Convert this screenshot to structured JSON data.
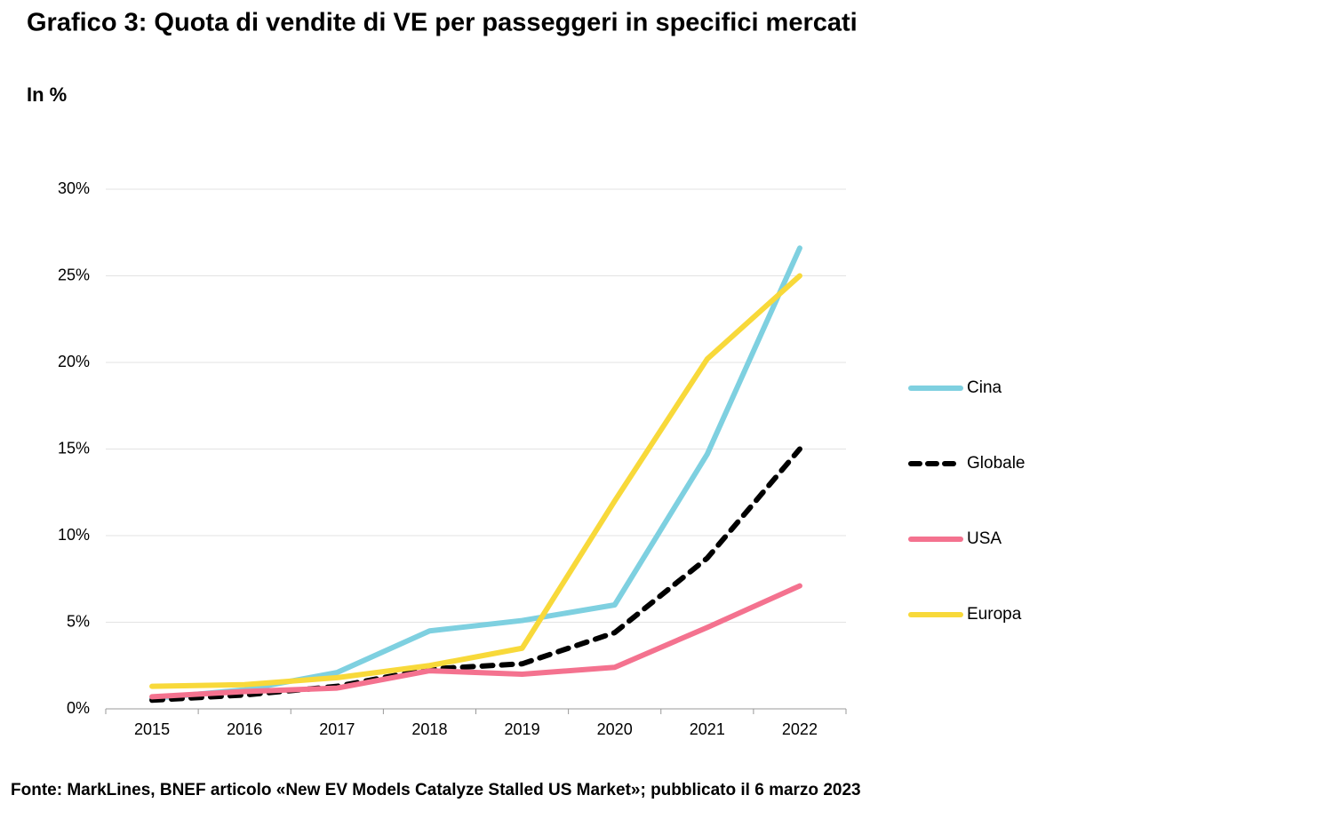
{
  "chart_data": {
    "type": "line",
    "title": "Grafico 3: Quota di vendite di VE per passeggeri in specifici mercati",
    "subtitle": "In %",
    "source": "Fonte: MarkLines, BNEF articolo «New EV Models Catalyze Stalled US Market»; pubblicato il 6 marzo 2023",
    "categories": [
      "2015",
      "2016",
      "2017",
      "2018",
      "2019",
      "2020",
      "2021",
      "2022"
    ],
    "ylim": [
      0,
      30
    ],
    "yticks": [
      {
        "value": 0,
        "label": "0%"
      },
      {
        "value": 5,
        "label": "5%"
      },
      {
        "value": 10,
        "label": "10%"
      },
      {
        "value": 15,
        "label": "15%"
      },
      {
        "value": 20,
        "label": "20%"
      },
      {
        "value": 25,
        "label": "25%"
      },
      {
        "value": 30,
        "label": "30%"
      }
    ],
    "grid": true,
    "legend": "right",
    "series": [
      {
        "name": "Cina",
        "color": "#7ed0e0",
        "dash": false,
        "values": [
          0.6,
          1.1,
          2.1,
          4.5,
          5.1,
          6.0,
          14.7,
          26.6
        ]
      },
      {
        "name": "Globale",
        "color": "#000000",
        "dash": true,
        "values": [
          0.5,
          0.8,
          1.3,
          2.3,
          2.6,
          4.4,
          8.7,
          15.0
        ]
      },
      {
        "name": "USA",
        "color": "#f4728f",
        "dash": false,
        "values": [
          0.7,
          1.0,
          1.2,
          2.2,
          2.0,
          2.4,
          4.7,
          7.1
        ]
      },
      {
        "name": "Europa",
        "color": "#f8d93a",
        "dash": false,
        "values": [
          1.3,
          1.4,
          1.8,
          2.5,
          3.5,
          12.0,
          20.2,
          25.0
        ]
      }
    ]
  }
}
